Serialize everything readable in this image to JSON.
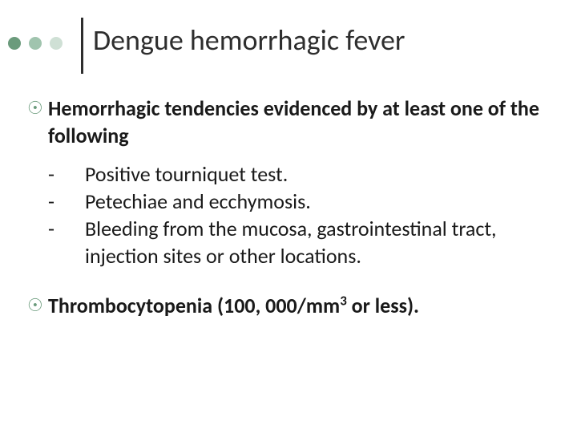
{
  "colors": {
    "dot1": "#6b9b7c",
    "dot2": "#a0c4ae",
    "dot3": "#cfe0d5",
    "vline": "#2e2e2e",
    "title": "#2e2e2e",
    "bullet_mark": "#6b9b7c",
    "body_text": "#1a1a1a"
  },
  "typography": {
    "title_fontsize": 36,
    "body_fontsize": 26,
    "title_weight": 400,
    "body_weight_bold": 700,
    "body_weight_normal": 400
  },
  "title": "Dengue hemorrhagic fever",
  "bullets": [
    {
      "text": "Hemorrhagic tendencies evidenced by at least one of the following",
      "sub": [
        "Positive tourniquet test.",
        "Petechiae and ecchymosis.",
        "Bleeding from the mucosa, gastrointestinal tract, injection sites or other locations."
      ]
    },
    {
      "text_pre": "Thrombocytopenia (100, 000/mm",
      "sup": "3",
      "text_post": " or less)."
    }
  ],
  "dash": "-",
  "bullet_glyph": "☉"
}
